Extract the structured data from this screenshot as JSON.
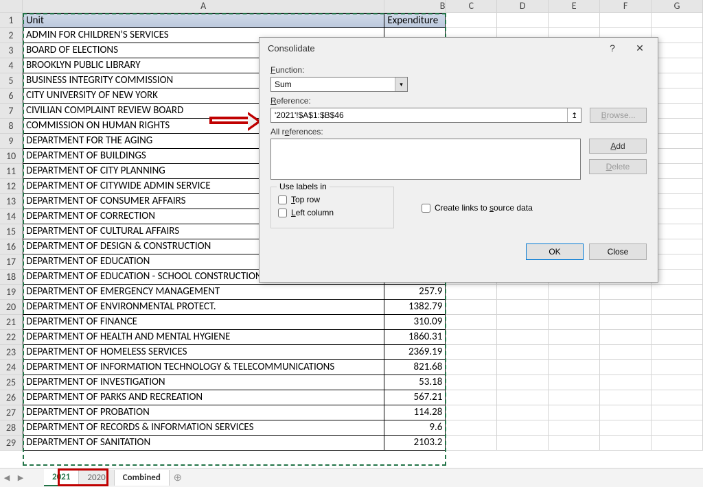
{
  "columns": [
    "A",
    "B",
    "C",
    "D",
    "E",
    "F",
    "G"
  ],
  "col_widths": {
    "A": 528,
    "B": 89,
    "C": 75,
    "D": 75,
    "E": 75,
    "F": 75,
    "G": 75
  },
  "header_row": {
    "A": "Unit",
    "B": "Expenditure"
  },
  "rows": [
    {
      "n": 2,
      "A": "ADMIN FOR CHILDREN'S SERVICES",
      "B": ""
    },
    {
      "n": 3,
      "A": "BOARD OF ELECTIONS",
      "B": ""
    },
    {
      "n": 4,
      "A": "BROOKLYN PUBLIC LIBRARY",
      "B": ""
    },
    {
      "n": 5,
      "A": "BUSINESS INTEGRITY COMMISSION",
      "B": ""
    },
    {
      "n": 6,
      "A": "CITY UNIVERSITY OF NEW YORK",
      "B": ""
    },
    {
      "n": 7,
      "A": "CIVILIAN COMPLAINT REVIEW BOARD",
      "B": ""
    },
    {
      "n": 8,
      "A": "COMMISSION ON HUMAN RIGHTS",
      "B": ""
    },
    {
      "n": 9,
      "A": "DEPARTMENT FOR THE AGING",
      "B": ""
    },
    {
      "n": 10,
      "A": "DEPARTMENT OF BUILDINGS",
      "B": ""
    },
    {
      "n": 11,
      "A": "DEPARTMENT OF CITY PLANNING",
      "B": ""
    },
    {
      "n": 12,
      "A": "DEPARTMENT OF CITYWIDE ADMIN SERVICE",
      "B": ""
    },
    {
      "n": 13,
      "A": "DEPARTMENT OF CONSUMER AFFAIRS",
      "B": ""
    },
    {
      "n": 14,
      "A": "DEPARTMENT OF CORRECTION",
      "B": ""
    },
    {
      "n": 15,
      "A": "DEPARTMENT OF CULTURAL AFFAIRS",
      "B": ""
    },
    {
      "n": 16,
      "A": "DEPARTMENT OF DESIGN & CONSTRUCTION",
      "B": ""
    },
    {
      "n": 17,
      "A": "DEPARTMENT OF EDUCATION",
      "B": ""
    },
    {
      "n": 18,
      "A": "DEPARTMENT OF EDUCATION - SCHOOL CONSTRUCTION AUTHORITY",
      "B": ""
    },
    {
      "n": 19,
      "A": "DEPARTMENT OF EMERGENCY MANAGEMENT",
      "B": "257.9"
    },
    {
      "n": 20,
      "A": "DEPARTMENT OF ENVIRONMENTAL PROTECT.",
      "B": "1382.79"
    },
    {
      "n": 21,
      "A": "DEPARTMENT OF FINANCE",
      "B": "310.09"
    },
    {
      "n": 22,
      "A": "DEPARTMENT OF HEALTH AND MENTAL HYGIENE",
      "B": "1860.31"
    },
    {
      "n": 23,
      "A": "DEPARTMENT OF HOMELESS SERVICES",
      "B": "2369.19"
    },
    {
      "n": 24,
      "A": "DEPARTMENT OF INFORMATION TECHNOLOGY & TELECOMMUNICATIONS",
      "B": "821.68"
    },
    {
      "n": 25,
      "A": "DEPARTMENT OF INVESTIGATION",
      "B": "53.18"
    },
    {
      "n": 26,
      "A": "DEPARTMENT OF PARKS AND RECREATION",
      "B": "567.21"
    },
    {
      "n": 27,
      "A": "DEPARTMENT OF PROBATION",
      "B": "114.28"
    },
    {
      "n": 28,
      "A": "DEPARTMENT OF RECORDS & INFORMATION SERVICES",
      "B": "9.6"
    },
    {
      "n": 29,
      "A": "DEPARTMENT OF SANITATION",
      "B": "2103.2"
    }
  ],
  "dialog": {
    "title": "Consolidate",
    "function_label": "Function:",
    "function_value": "Sum",
    "reference_label": "Reference:",
    "reference_value": "'2021'!$A$1:$B$46",
    "all_references_label": "All references:",
    "browse": "Browse...",
    "add": "Add",
    "delete": "Delete",
    "use_labels": "Use labels in",
    "top_row": "Top row",
    "left_column": "Left column",
    "create_links": "Create links to source data",
    "ok": "OK",
    "close": "Close"
  },
  "tabs": [
    {
      "label": "2021",
      "state": "active"
    },
    {
      "label": "2020",
      "state": "normal"
    },
    {
      "label": "Combined",
      "state": "bold"
    }
  ],
  "colors": {
    "selection_dash": "#217346",
    "annotation": "#c00000",
    "grid": "#d4d4d4",
    "dialog_bg": "#f0f0f0"
  }
}
